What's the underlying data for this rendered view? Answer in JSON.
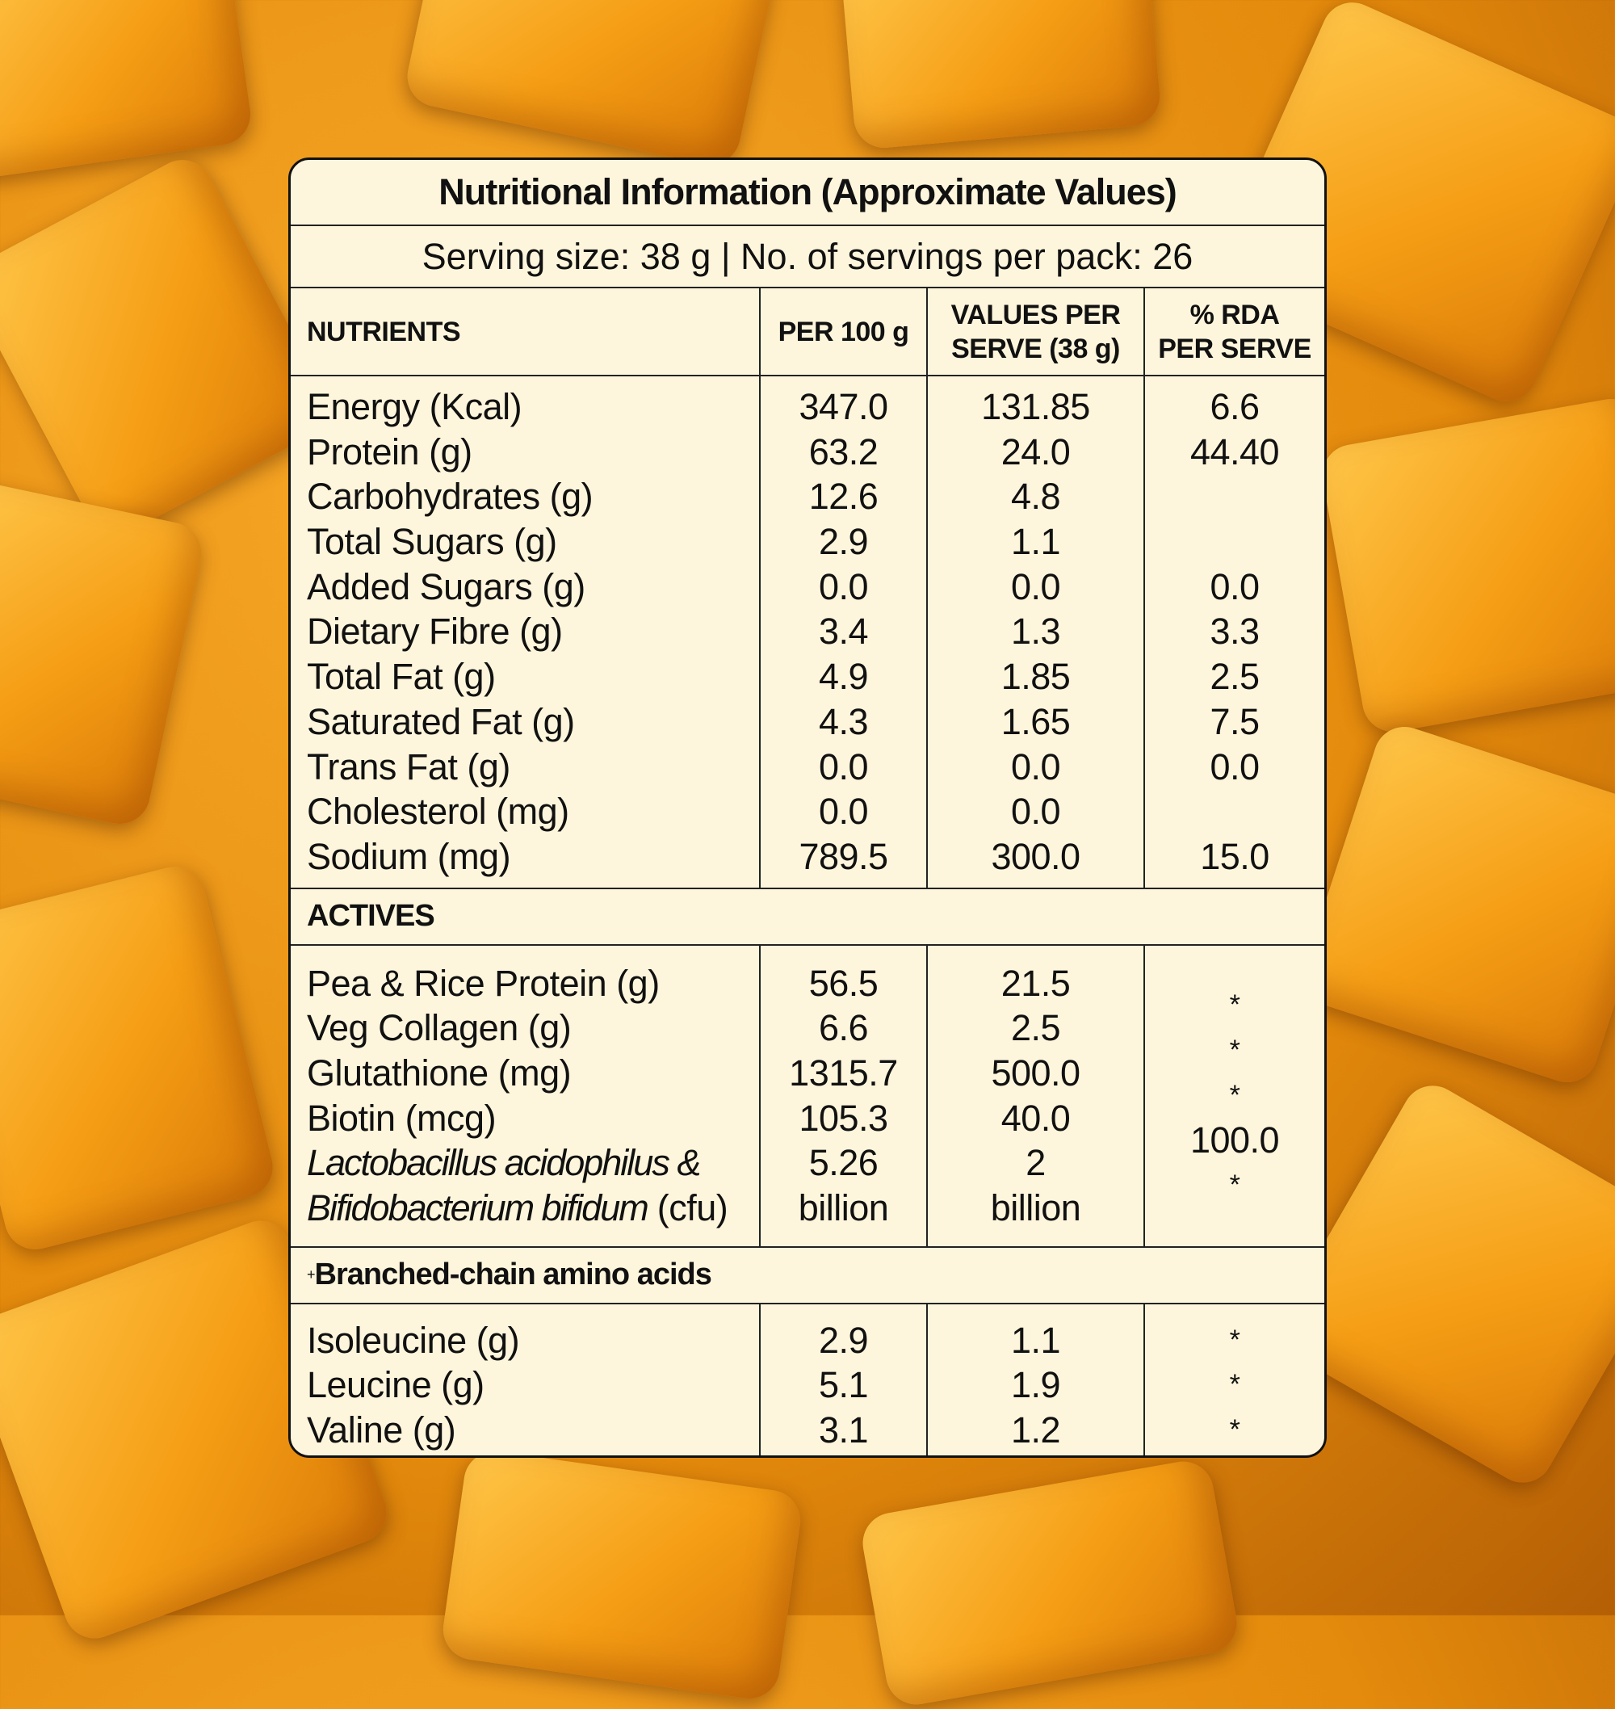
{
  "header": {
    "title": "Nutritional Information (Approximate Values)",
    "serving": "Serving size: 38 g | No. of servings per pack: 26"
  },
  "table": {
    "columns": [
      "NUTRIENTS",
      "PER 100 g",
      [
        "VALUES PER",
        "SERVE (38 g)"
      ],
      [
        "% RDA",
        "PER SERVE"
      ]
    ],
    "nutrients": [
      [
        "Energy (Kcal)",
        "347.0",
        "131.85",
        "6.6"
      ],
      [
        "Protein (g)",
        "63.2",
        "24.0",
        "44.40"
      ],
      [
        "Carbohydrates (g)",
        "12.6",
        "4.8",
        null
      ],
      [
        "Total Sugars (g)",
        "2.9",
        "1.1",
        null
      ],
      [
        "Added Sugars (g)",
        "0.0",
        "0.0",
        "0.0"
      ],
      [
        "Dietary Fibre (g)",
        "3.4",
        "1.3",
        "3.3"
      ],
      [
        "Total Fat (g)",
        "4.9",
        "1.85",
        "2.5"
      ],
      [
        "Saturated Fat (g)",
        "4.3",
        "1.65",
        "7.5"
      ],
      [
        "Trans Fat (g)",
        "0.0",
        "0.0",
        "0.0"
      ],
      [
        "Cholesterol (mg)",
        "0.0",
        "0.0",
        null
      ],
      [
        "Sodium (mg)",
        "789.5",
        "300.0",
        "15.0"
      ]
    ],
    "actives_title": "ACTIVES",
    "actives": [
      [
        "Pea & Rice Protein (g)",
        "56.5",
        "21.5",
        "*"
      ],
      [
        "Veg Collagen (g)",
        "6.6",
        "2.5",
        "*"
      ],
      [
        "Glutathione (mg)",
        "1315.7",
        "500.0",
        "*"
      ],
      [
        "Biotin (mcg)",
        "105.3",
        "40.0",
        "100.0"
      ]
    ],
    "probiotic": {
      "italic_1": "Lactobacillus acidophilus &",
      "italic_2": "Bifidobacterium bifidum",
      "suffix": "(cfu)",
      "per_100g": "5.26 billion",
      "per_serve": "2 billion",
      "rda": "*"
    },
    "bcaa_marker": "+",
    "bcaa_title": "Branched-chain amino acids",
    "bcaa": [
      [
        "Isoleucine (g)",
        "2.9",
        "1.1",
        "*"
      ],
      [
        "Leucine (g)",
        "5.1",
        "1.9",
        "*"
      ],
      [
        "Valine (g)",
        "3.1",
        "1.2",
        "*"
      ]
    ]
  }
}
